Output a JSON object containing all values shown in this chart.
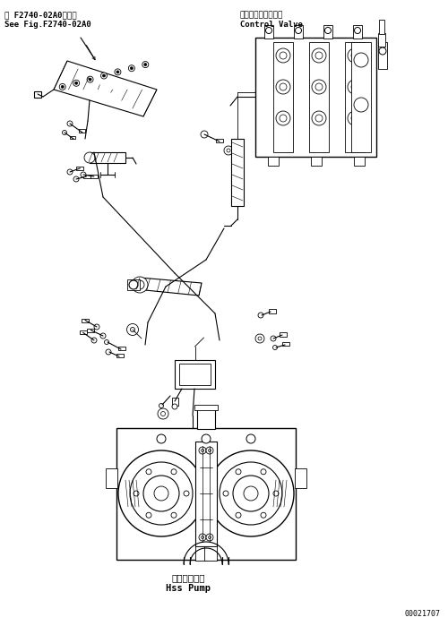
{
  "bg_color": "#ffffff",
  "fig_width": 5.0,
  "fig_height": 6.99,
  "dpi": 100,
  "top_left_label1": "第 F2740-02A0図参照",
  "top_left_label2": "See Fig.F2740-02A0",
  "top_right_label1": "コントロールバルブ",
  "top_right_label2": "Control Valve",
  "bottom_center_label1": "ＨＳＳポンプ",
  "bottom_center_label2": "Hss Pump",
  "bottom_right_label": "00021707",
  "lc": "#000000"
}
